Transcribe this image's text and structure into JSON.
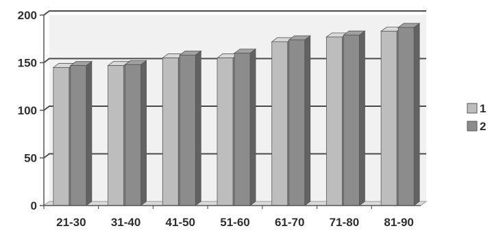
{
  "chart_data": {
    "type": "bar",
    "categories": [
      "21-30",
      "31-40",
      "41-50",
      "51-60",
      "61-70",
      "71-80",
      "81-90"
    ],
    "series": [
      {
        "name": "1",
        "values": [
          145,
          147,
          155,
          155,
          172,
          177,
          183
        ]
      },
      {
        "name": "2",
        "values": [
          147,
          148,
          158,
          160,
          174,
          179,
          187
        ]
      }
    ],
    "ylim": [
      0,
      200
    ],
    "yticks": [
      0,
      50,
      100,
      150,
      200
    ],
    "grid": true,
    "legend_position": "right",
    "colors": {
      "series_1": "#bdbdbd",
      "series_2": "#8c8c8c",
      "plot_bg": "#f1f1f1",
      "gridline": "#4a4a4a"
    }
  }
}
